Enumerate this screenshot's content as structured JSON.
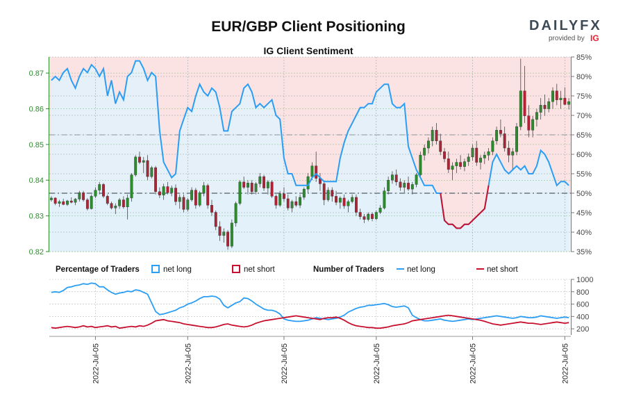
{
  "header": {
    "title": "EUR/GBP Client Positioning",
    "subtitle": "IG Client Sentiment"
  },
  "logo": {
    "brand": "DAILYFX",
    "provided_by": "provided by",
    "ig": "IG"
  },
  "legend": {
    "percentage_heading": "Percentage of Traders",
    "number_heading": "Number of Traders",
    "net_long": "net long",
    "net_short": "net short"
  },
  "colors": {
    "net_long": "#2a9df4",
    "net_short": "#c8102e",
    "candle_up": "#2e8b2e",
    "candle_down": "#b22234",
    "long_fill": "#e6f3fb",
    "short_fill": "#fbe3e3"
  },
  "chart_data": [
    {
      "type": "candlestick",
      "title": "EUR/GBP Client Positioning",
      "subtitle": "IG Client Sentiment",
      "y_left_ticks": [
        "0.82",
        "0.83",
        "0.84",
        "0.85",
        "0.86",
        "0.87"
      ],
      "ylim_left": [
        0.82,
        0.8745
      ],
      "y_right_ticks": [
        "35%",
        "40%",
        "45%",
        "50%",
        "55%",
        "60%",
        "65%",
        "70%",
        "75%",
        "80%",
        "85%"
      ],
      "ylim_right": [
        35,
        85
      ],
      "reference_lines": {
        "percent_50": 50,
        "percent_65": 65
      },
      "price_ohlc": [
        [
          0.8345,
          0.8355,
          0.834,
          0.835
        ],
        [
          0.835,
          0.8352,
          0.833,
          0.8335
        ],
        [
          0.8335,
          0.8345,
          0.8325,
          0.834
        ],
        [
          0.834,
          0.8348,
          0.833,
          0.8332
        ],
        [
          0.8332,
          0.8345,
          0.8328,
          0.8342
        ],
        [
          0.8342,
          0.8352,
          0.8335,
          0.8338
        ],
        [
          0.8338,
          0.835,
          0.833,
          0.8347
        ],
        [
          0.8347,
          0.837,
          0.834,
          0.8365
        ],
        [
          0.8365,
          0.837,
          0.834,
          0.8345
        ],
        [
          0.8345,
          0.835,
          0.8315,
          0.832
        ],
        [
          0.832,
          0.836,
          0.8318,
          0.8355
        ],
        [
          0.8355,
          0.838,
          0.835,
          0.8372
        ],
        [
          0.8372,
          0.8395,
          0.836,
          0.8388
        ],
        [
          0.8388,
          0.8392,
          0.835,
          0.8355
        ],
        [
          0.8355,
          0.836,
          0.833,
          0.8335
        ],
        [
          0.8335,
          0.834,
          0.8318,
          0.8322
        ],
        [
          0.8322,
          0.8335,
          0.8305,
          0.8328
        ],
        [
          0.8328,
          0.835,
          0.832,
          0.8345
        ],
        [
          0.8345,
          0.8355,
          0.832,
          0.8325
        ],
        [
          0.8325,
          0.836,
          0.829,
          0.835
        ],
        [
          0.835,
          0.842,
          0.834,
          0.8415
        ],
        [
          0.8415,
          0.847,
          0.841,
          0.8465
        ],
        [
          0.8465,
          0.848,
          0.8445,
          0.845
        ],
        [
          0.845,
          0.8465,
          0.842,
          0.8455
        ],
        [
          0.8455,
          0.847,
          0.84,
          0.841
        ],
        [
          0.841,
          0.844,
          0.8405,
          0.8435
        ],
        [
          0.8435,
          0.844,
          0.836,
          0.8368
        ],
        [
          0.8368,
          0.838,
          0.835,
          0.8358
        ],
        [
          0.8358,
          0.839,
          0.8345,
          0.8382
        ],
        [
          0.8382,
          0.8395,
          0.836,
          0.8365
        ],
        [
          0.8365,
          0.8385,
          0.8355,
          0.8378
        ],
        [
          0.8378,
          0.8388,
          0.833,
          0.834
        ],
        [
          0.834,
          0.836,
          0.832,
          0.8352
        ],
        [
          0.8352,
          0.836,
          0.831,
          0.8318
        ],
        [
          0.8318,
          0.835,
          0.8312,
          0.8345
        ],
        [
          0.8345,
          0.838,
          0.834,
          0.8372
        ],
        [
          0.8372,
          0.8378,
          0.832,
          0.833
        ],
        [
          0.833,
          0.837,
          0.8325,
          0.8365
        ],
        [
          0.8365,
          0.8395,
          0.8355,
          0.8385
        ],
        [
          0.8385,
          0.839,
          0.832,
          0.833
        ],
        [
          0.833,
          0.8345,
          0.83,
          0.831
        ],
        [
          0.831,
          0.8315,
          0.826,
          0.827
        ],
        [
          0.827,
          0.8285,
          0.823,
          0.8245
        ],
        [
          0.8245,
          0.8265,
          0.8225,
          0.8255
        ],
        [
          0.8255,
          0.826,
          0.8205,
          0.8215
        ],
        [
          0.8215,
          0.829,
          0.821,
          0.828
        ],
        [
          0.828,
          0.834,
          0.827,
          0.8335
        ],
        [
          0.8335,
          0.84,
          0.833,
          0.8395
        ],
        [
          0.8395,
          0.841,
          0.8375,
          0.838
        ],
        [
          0.838,
          0.84,
          0.836,
          0.8392
        ],
        [
          0.8392,
          0.84,
          0.836,
          0.8368
        ],
        [
          0.8368,
          0.8395,
          0.836,
          0.839
        ],
        [
          0.839,
          0.842,
          0.838,
          0.841
        ],
        [
          0.841,
          0.8415,
          0.837,
          0.8378
        ],
        [
          0.8378,
          0.84,
          0.836,
          0.8395
        ],
        [
          0.8395,
          0.84,
          0.835,
          0.8355
        ],
        [
          0.8355,
          0.836,
          0.832,
          0.833
        ],
        [
          0.833,
          0.837,
          0.8325,
          0.8362
        ],
        [
          0.8362,
          0.838,
          0.834,
          0.8348
        ],
        [
          0.8348,
          0.836,
          0.8315,
          0.8322
        ],
        [
          0.8322,
          0.8345,
          0.831,
          0.834
        ],
        [
          0.834,
          0.8355,
          0.8325,
          0.833
        ],
        [
          0.833,
          0.836,
          0.8322,
          0.8352
        ],
        [
          0.8352,
          0.838,
          0.8345,
          0.8375
        ],
        [
          0.8375,
          0.842,
          0.8365,
          0.841
        ],
        [
          0.841,
          0.845,
          0.84,
          0.844
        ],
        [
          0.844,
          0.848,
          0.8395,
          0.8405
        ],
        [
          0.8405,
          0.842,
          0.837,
          0.839
        ],
        [
          0.839,
          0.8395,
          0.833,
          0.8345
        ],
        [
          0.8345,
          0.838,
          0.834,
          0.8372
        ],
        [
          0.8372,
          0.838,
          0.834,
          0.8355
        ],
        [
          0.8355,
          0.837,
          0.833,
          0.8338
        ],
        [
          0.8338,
          0.8355,
          0.832,
          0.835
        ],
        [
          0.835,
          0.836,
          0.832,
          0.8328
        ],
        [
          0.8328,
          0.8345,
          0.831,
          0.834
        ],
        [
          0.834,
          0.836,
          0.8335,
          0.8352
        ],
        [
          0.8352,
          0.836,
          0.83,
          0.831
        ],
        [
          0.831,
          0.832,
          0.829,
          0.8298
        ],
        [
          0.8298,
          0.8305,
          0.828,
          0.829
        ],
        [
          0.829,
          0.831,
          0.8285,
          0.8305
        ],
        [
          0.8305,
          0.831,
          0.8285,
          0.8292
        ],
        [
          0.8292,
          0.8315,
          0.8288,
          0.831
        ],
        [
          0.831,
          0.833,
          0.8305,
          0.8322
        ],
        [
          0.8322,
          0.838,
          0.8318,
          0.837
        ],
        [
          0.837,
          0.841,
          0.836,
          0.84
        ],
        [
          0.84,
          0.8425,
          0.839,
          0.8415
        ],
        [
          0.8415,
          0.843,
          0.8385,
          0.8395
        ],
        [
          0.8395,
          0.8405,
          0.837,
          0.838
        ],
        [
          0.838,
          0.84,
          0.8365,
          0.8392
        ],
        [
          0.8392,
          0.841,
          0.837,
          0.8375
        ],
        [
          0.8375,
          0.8395,
          0.836,
          0.8388
        ],
        [
          0.8388,
          0.842,
          0.838,
          0.8415
        ],
        [
          0.8415,
          0.848,
          0.841,
          0.847
        ],
        [
          0.847,
          0.85,
          0.8455,
          0.849
        ],
        [
          0.849,
          0.852,
          0.8475,
          0.851
        ],
        [
          0.851,
          0.855,
          0.8495,
          0.854
        ],
        [
          0.854,
          0.856,
          0.85,
          0.851
        ],
        [
          0.851,
          0.853,
          0.847,
          0.848
        ],
        [
          0.848,
          0.849,
          0.845,
          0.846
        ],
        [
          0.846,
          0.848,
          0.842,
          0.843
        ],
        [
          0.843,
          0.845,
          0.84,
          0.844
        ],
        [
          0.844,
          0.846,
          0.842,
          0.845
        ],
        [
          0.845,
          0.847,
          0.843,
          0.8438
        ],
        [
          0.8438,
          0.846,
          0.8425,
          0.8452
        ],
        [
          0.8452,
          0.8475,
          0.844,
          0.8465
        ],
        [
          0.8465,
          0.85,
          0.8455,
          0.849
        ],
        [
          0.849,
          0.851,
          0.844,
          0.845
        ],
        [
          0.845,
          0.847,
          0.843,
          0.8462
        ],
        [
          0.8462,
          0.848,
          0.8445,
          0.847
        ],
        [
          0.847,
          0.849,
          0.8455,
          0.848
        ],
        [
          0.848,
          0.852,
          0.847,
          0.851
        ],
        [
          0.851,
          0.855,
          0.85,
          0.854
        ],
        [
          0.854,
          0.857,
          0.852,
          0.853
        ],
        [
          0.853,
          0.855,
          0.848,
          0.849
        ],
        [
          0.849,
          0.851,
          0.845,
          0.847
        ],
        [
          0.847,
          0.849,
          0.843,
          0.848
        ],
        [
          0.848,
          0.856,
          0.847,
          0.855
        ],
        [
          0.855,
          0.874,
          0.854,
          0.865
        ],
        [
          0.865,
          0.872,
          0.856,
          0.858
        ],
        [
          0.858,
          0.861,
          0.852,
          0.854
        ],
        [
          0.854,
          0.858,
          0.852,
          0.857
        ],
        [
          0.857,
          0.86,
          0.855,
          0.859
        ],
        [
          0.859,
          0.863,
          0.857,
          0.861
        ],
        [
          0.861,
          0.864,
          0.858,
          0.86
        ],
        [
          0.86,
          0.863,
          0.859,
          0.862
        ],
        [
          0.862,
          0.866,
          0.86,
          0.865
        ],
        [
          0.865,
          0.867,
          0.861,
          0.8625
        ],
        [
          0.8625,
          0.865,
          0.86,
          0.863
        ],
        [
          0.863,
          0.866,
          0.861,
          0.8612
        ],
        [
          0.8612,
          0.863,
          0.8598,
          0.862
        ]
      ],
      "percent_net_long": [
        79,
        80,
        79,
        81,
        82,
        79,
        77,
        80,
        82,
        81,
        83,
        82,
        80,
        82,
        75,
        79,
        73,
        76,
        74,
        80,
        81,
        84,
        84,
        82,
        79,
        81,
        80,
        66,
        58,
        56,
        54,
        55,
        66,
        69,
        72,
        71,
        75,
        78,
        76,
        75,
        77,
        76,
        72,
        66,
        66,
        71,
        72,
        73,
        77,
        78,
        76,
        72,
        73,
        72,
        73,
        74,
        70,
        69,
        59,
        55,
        55,
        52,
        52,
        52,
        52,
        54,
        55,
        54,
        53,
        53,
        53,
        53,
        59,
        63,
        66,
        68,
        70,
        72,
        72,
        73,
        73,
        76,
        77,
        78,
        78,
        73,
        72,
        72,
        73,
        62,
        59,
        56,
        54,
        52,
        52,
        52,
        50,
        50,
        43,
        42,
        42,
        41,
        41,
        42,
        42,
        43,
        44,
        45,
        46,
        52,
        58,
        60,
        58,
        56,
        55,
        56,
        57,
        56,
        57,
        55,
        55,
        57,
        61,
        60,
        58,
        55,
        52,
        53,
        53,
        52
      ],
      "x_tick_labels": [
        "2022-Jul-05",
        "2022-Jul-05",
        "2022-Jul-05",
        "2022-Jul-05",
        "2022-Jul-05",
        "2022-Jul-05"
      ]
    },
    {
      "type": "line",
      "title": "Number of Traders",
      "y_ticks": [
        "200",
        "400",
        "600",
        "800",
        "1000"
      ],
      "ylim": [
        100,
        1000
      ],
      "series": [
        {
          "name": "net long",
          "values": [
            790,
            800,
            790,
            820,
            870,
            880,
            900,
            910,
            930,
            920,
            940,
            930,
            880,
            880,
            830,
            790,
            760,
            780,
            790,
            810,
            800,
            830,
            820,
            790,
            760,
            620,
            480,
            430,
            440,
            460,
            480,
            500,
            540,
            560,
            600,
            620,
            650,
            690,
            720,
            720,
            730,
            720,
            680,
            580,
            540,
            580,
            620,
            640,
            700,
            690,
            650,
            600,
            560,
            520,
            500,
            500,
            480,
            440,
            360,
            340,
            330,
            320,
            320,
            330,
            340,
            360,
            380,
            370,
            360,
            350,
            360,
            370,
            390,
            420,
            470,
            500,
            530,
            550,
            560,
            580,
            580,
            590,
            600,
            610,
            590,
            560,
            550,
            560,
            570,
            540,
            420,
            380,
            350,
            330,
            330,
            340,
            350,
            360,
            340,
            330,
            320,
            330,
            340,
            350,
            360,
            350,
            360,
            370,
            380,
            390,
            400,
            410,
            400,
            390,
            380,
            370,
            380,
            400,
            390,
            380,
            380,
            390,
            410,
            400,
            390,
            380,
            370,
            380,
            390,
            380
          ]
        },
        {
          "name": "net short",
          "values": [
            220,
            210,
            220,
            230,
            240,
            230,
            220,
            230,
            250,
            230,
            240,
            220,
            230,
            240,
            250,
            230,
            240,
            210,
            220,
            230,
            240,
            230,
            250,
            240,
            260,
            290,
            330,
            340,
            350,
            330,
            320,
            310,
            300,
            280,
            270,
            260,
            250,
            240,
            230,
            220,
            220,
            230,
            250,
            270,
            280,
            260,
            250,
            240,
            230,
            240,
            260,
            290,
            310,
            330,
            340,
            350,
            360,
            370,
            380,
            390,
            400,
            410,
            400,
            390,
            380,
            370,
            360,
            350,
            370,
            380,
            380,
            390,
            370,
            340,
            300,
            270,
            250,
            240,
            230,
            220,
            220,
            210,
            210,
            220,
            230,
            250,
            260,
            270,
            280,
            300,
            330,
            340,
            350,
            360,
            370,
            380,
            390,
            400,
            410,
            420,
            410,
            400,
            390,
            380,
            370,
            360,
            350,
            340,
            320,
            300,
            280,
            270,
            260,
            270,
            280,
            290,
            300,
            310,
            300,
            290,
            290,
            280,
            270,
            280,
            290,
            300,
            310,
            300,
            290,
            300
          ]
        }
      ]
    }
  ]
}
